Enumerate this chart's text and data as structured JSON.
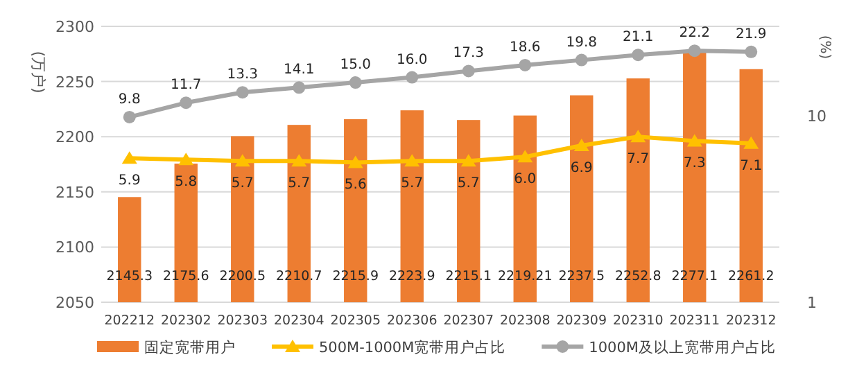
{
  "chart_data": {
    "type": "bar",
    "ylabel": "(万户)",
    "y2label": "(%)",
    "categories": [
      "202212",
      "202302",
      "202303",
      "202304",
      "202305",
      "202306",
      "202307",
      "202308",
      "202309",
      "202310",
      "202311",
      "202312"
    ],
    "series": [
      {
        "name": "固定宽带用户",
        "color": "#ed7d31",
        "values": [
          2145.3,
          2175.6,
          2200.5,
          2210.7,
          2215.9,
          2223.9,
          2215.1,
          2219.21,
          2237.5,
          2252.8,
          2277.1,
          2261.2
        ],
        "value_labels": [
          "2145.3",
          "2175.6",
          "2200.5",
          "2210.7",
          "2215.9",
          "2223.9",
          "2215.1",
          "2219.21",
          "2237.5",
          "2252.8",
          "2277.1",
          "2261.2"
        ]
      },
      {
        "name": "500M-1000M宽带用户占比",
        "type": "line",
        "axis": "y2",
        "marker": "triangle",
        "color": "#ffc000",
        "values": [
          5.9,
          5.8,
          5.7,
          5.7,
          5.6,
          5.7,
          5.7,
          6.0,
          6.9,
          7.7,
          7.3,
          7.1
        ],
        "value_labels": [
          "5.9",
          "5.8",
          "5.7",
          "5.7",
          "5.6",
          "5.7",
          "5.7",
          "6.0",
          "6.9",
          "7.7",
          "7.3",
          "7.1"
        ]
      },
      {
        "name": "1000M及以上宽带用户占比",
        "type": "line",
        "axis": "y2",
        "marker": "circle",
        "color": "#a5a5a5",
        "values": [
          9.8,
          11.7,
          13.3,
          14.1,
          15.0,
          16.0,
          17.3,
          18.6,
          19.8,
          21.1,
          22.2,
          21.9
        ],
        "value_labels": [
          "9.8",
          "11.7",
          "13.3",
          "14.1",
          "15.0",
          "16.0",
          "17.3",
          "18.6",
          "19.8",
          "21.1",
          "22.2",
          "21.9"
        ]
      }
    ],
    "ylim": [
      2050,
      2300
    ],
    "yticks": [
      2050,
      2100,
      2150,
      2200,
      2250,
      2300
    ],
    "y2lim": [
      1,
      30
    ],
    "y2ticks": [
      1,
      10
    ],
    "log": "y2",
    "grid": "y",
    "legend": "bottom"
  }
}
